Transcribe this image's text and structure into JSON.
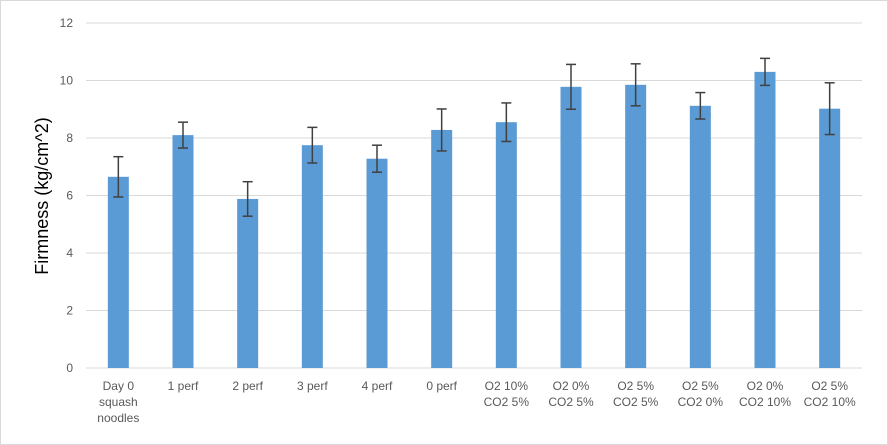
{
  "chart_data": {
    "type": "bar",
    "title": "",
    "xlabel": "",
    "ylabel": "Firmness (kg/cm^2)",
    "ylim": [
      0,
      12
    ],
    "yticks": [
      0,
      2,
      4,
      6,
      8,
      10,
      12
    ],
    "grid": true,
    "legend": "none",
    "bar_color": "#5b9bd5",
    "grid_color": "#d9d9d9",
    "error_bar_color": "#404040",
    "categories": [
      [
        "Day 0",
        "squash",
        "noodles"
      ],
      [
        "1 perf"
      ],
      [
        "2 perf"
      ],
      [
        "3 perf"
      ],
      [
        "4 perf"
      ],
      [
        "0 perf"
      ],
      [
        "O2 10%",
        "CO2 5%"
      ],
      [
        "O2 0%",
        "CO2 5%"
      ],
      [
        "O2 5%",
        "CO2 5%"
      ],
      [
        "O2 5%",
        "CO2 0%"
      ],
      [
        "O2 0%",
        "CO2 10%"
      ],
      [
        "O2 5%",
        "CO2 10%"
      ]
    ],
    "values": [
      6.65,
      8.1,
      5.88,
      7.75,
      7.28,
      8.28,
      8.55,
      9.78,
      9.85,
      9.12,
      10.3,
      9.02
    ],
    "errors": [
      0.7,
      0.45,
      0.6,
      0.62,
      0.47,
      0.73,
      0.67,
      0.78,
      0.73,
      0.46,
      0.47,
      0.9
    ]
  }
}
